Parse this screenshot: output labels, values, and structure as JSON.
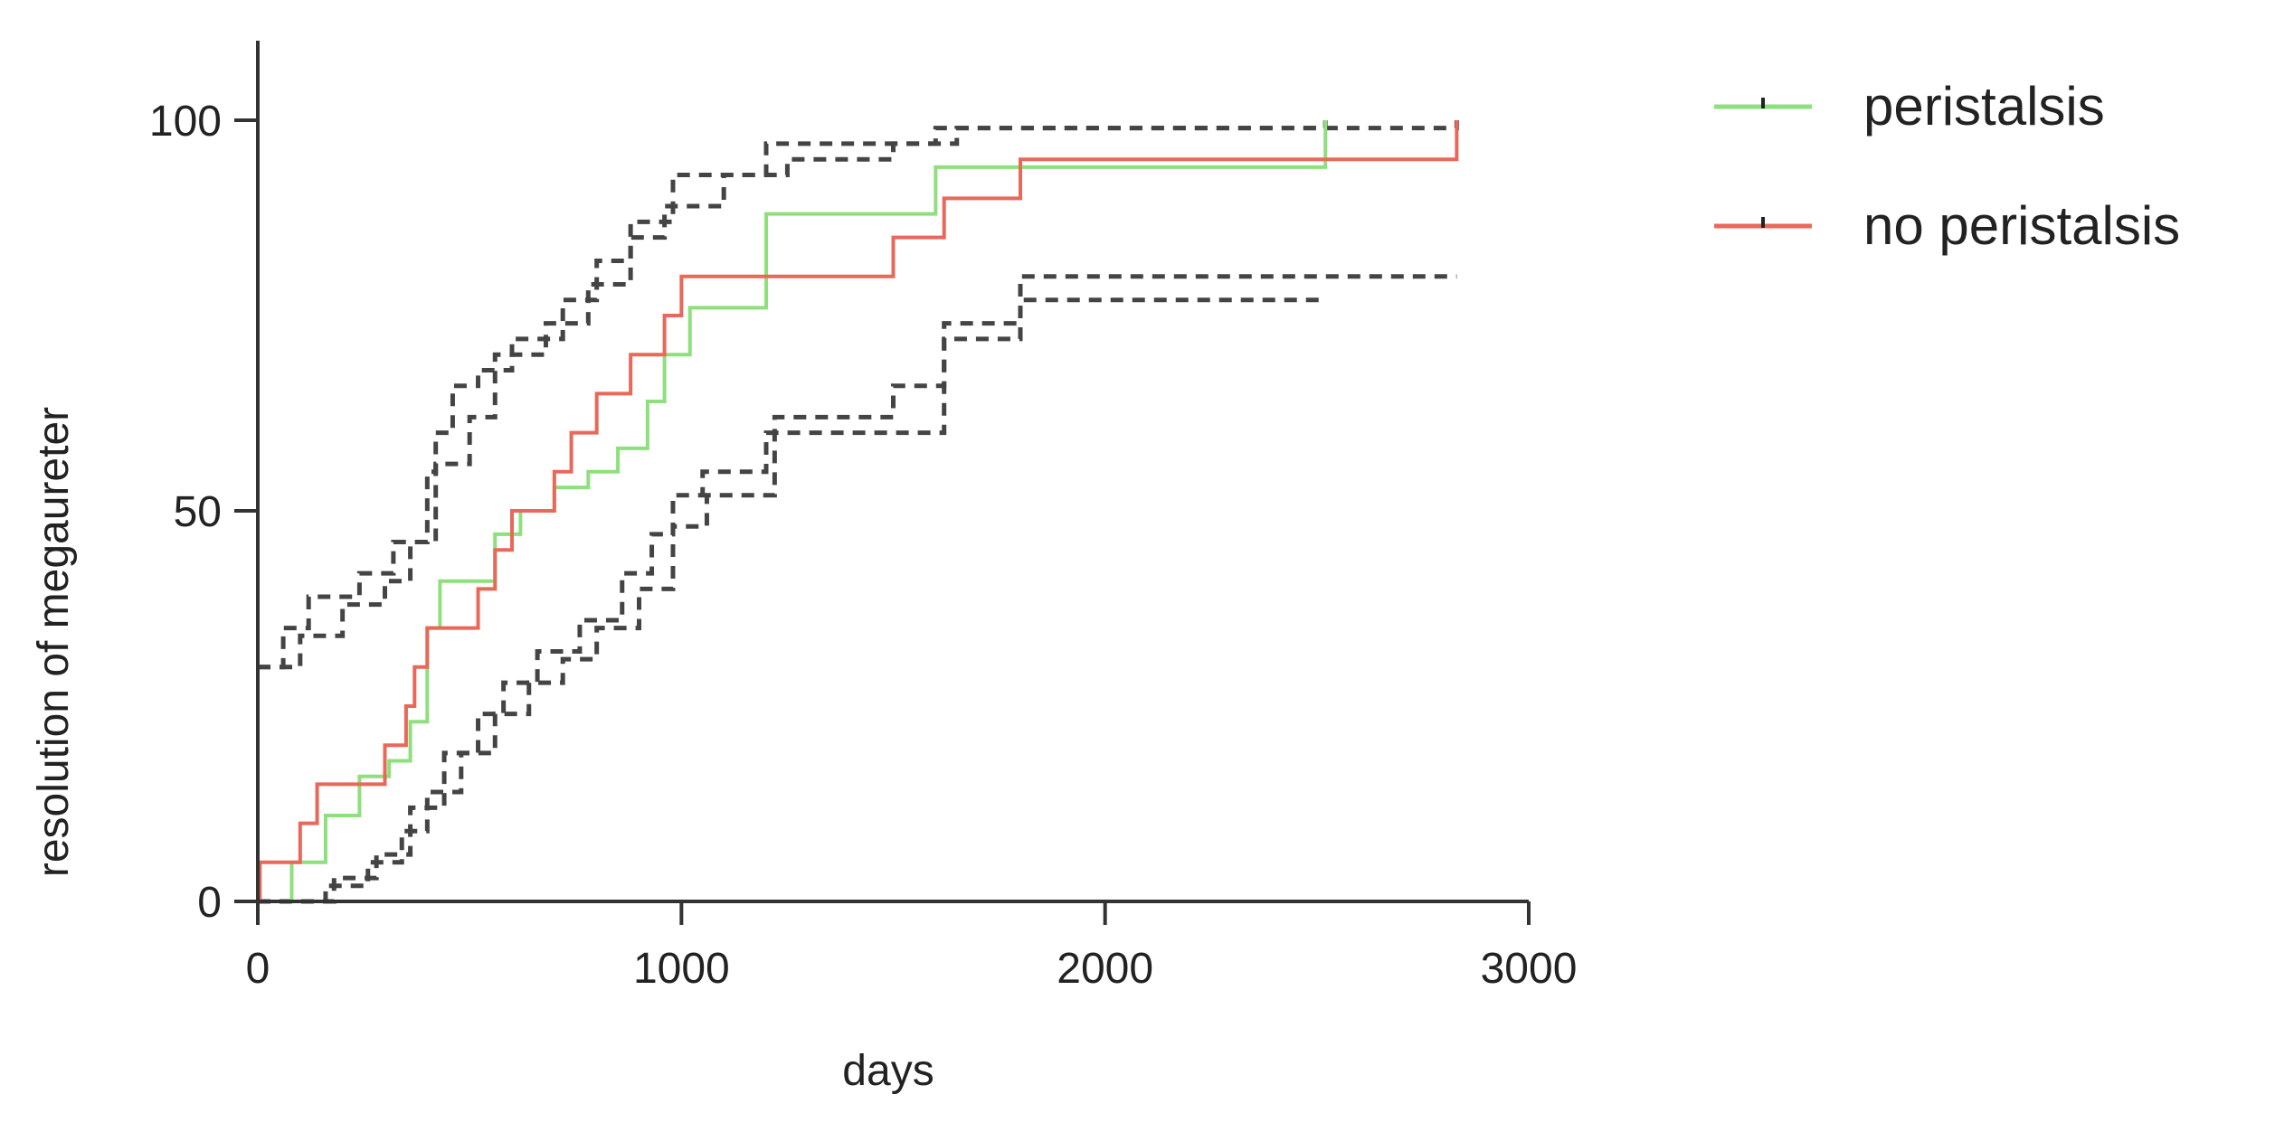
{
  "chart_data": {
    "type": "line",
    "subtype": "kaplan-meier step (cumulative incidence) with dashed confidence bands",
    "xlabel": "days",
    "ylabel": "resolution of megaureter",
    "xlim": [
      0,
      3000
    ],
    "ylim": [
      0,
      100
    ],
    "xticks": [
      "0",
      "1000",
      "2000",
      "3000"
    ],
    "yticks": [
      "0",
      "50",
      "100"
    ],
    "grid": false,
    "legend_position": "top-right, outside plot",
    "series": [
      {
        "name": "peristalsis",
        "color": "#8ee07c",
        "style": "solid step",
        "x": [
          0,
          80,
          160,
          240,
          310,
          360,
          400,
          430,
          560,
          620,
          700,
          780,
          850,
          920,
          960,
          1020,
          1200,
          1600,
          1800,
          2520
        ],
        "y": [
          0,
          5,
          11,
          16,
          18,
          23,
          35,
          41,
          47,
          50,
          53,
          55,
          58,
          64,
          70,
          76,
          88,
          94,
          94,
          100
        ]
      },
      {
        "name": "no peristalsis",
        "color": "#e8685a",
        "style": "solid step",
        "x": [
          0,
          5,
          100,
          140,
          300,
          350,
          370,
          400,
          440,
          520,
          560,
          600,
          700,
          740,
          780,
          800,
          880,
          920,
          960,
          1000,
          1500,
          1560,
          1620,
          1800,
          2830
        ],
        "y": [
          0,
          5,
          10,
          15,
          20,
          25,
          30,
          35,
          35,
          40,
          45,
          50,
          55,
          60,
          60,
          65,
          70,
          70,
          75,
          80,
          85,
          85,
          90,
          95,
          100
        ]
      },
      {
        "name": "peristalsis upper band",
        "color": "#444444",
        "style": "dashed step",
        "x": [
          0,
          60,
          120,
          240,
          320,
          400,
          420,
          460,
          520,
          600,
          720,
          800,
          880,
          980,
          1200,
          1600,
          2520
        ],
        "y": [
          30,
          35,
          39,
          42,
          46,
          55,
          60,
          66,
          68,
          72,
          77,
          82,
          87,
          93,
          97,
          99,
          100
        ]
      },
      {
        "name": "no peristalsis upper band",
        "color": "#444444",
        "style": "dashed step",
        "x": [
          0,
          100,
          200,
          300,
          360,
          420,
          500,
          560,
          680,
          780,
          880,
          960,
          1100,
          1250,
          1500,
          1650,
          2830
        ],
        "y": [
          30,
          34,
          38,
          41,
          46,
          56,
          62,
          70,
          74,
          79,
          85,
          89,
          93,
          95,
          97,
          99,
          100
        ]
      },
      {
        "name": "peristalsis lower band",
        "color": "#444444",
        "style": "dashed step",
        "x": [
          0,
          180,
          280,
          360,
          440,
          520,
          580,
          660,
          760,
          860,
          930,
          980,
          1050,
          1200,
          1620,
          1800,
          2520
        ],
        "y": [
          0,
          3,
          6,
          12,
          19,
          24,
          28,
          32,
          36,
          42,
          47,
          52,
          55,
          60,
          72,
          77,
          77
        ]
      },
      {
        "name": "no peristalsis lower band",
        "color": "#444444",
        "style": "dashed step",
        "x": [
          0,
          160,
          260,
          340,
          400,
          480,
          560,
          640,
          720,
          800,
          900,
          980,
          1060,
          1220,
          1500,
          1620,
          1800,
          2830
        ],
        "y": [
          0,
          2,
          5,
          9,
          14,
          19,
          24,
          28,
          31,
          35,
          40,
          48,
          52,
          62,
          66,
          74,
          80,
          80
        ]
      }
    ]
  }
}
